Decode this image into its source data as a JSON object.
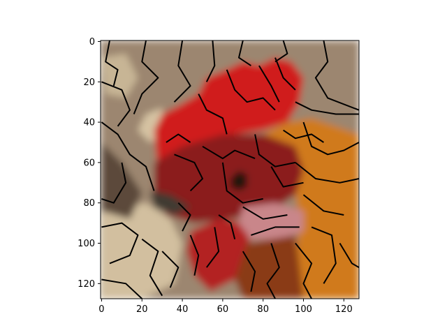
{
  "chart_data": {
    "type": "heatmap",
    "description": "",
    "title": "",
    "xlabel": "",
    "ylabel": "",
    "xlim": [
      -0.5,
      127.5
    ],
    "ylim": [
      127.5,
      -0.5
    ],
    "x_ticks": [
      0,
      20,
      40,
      60,
      80,
      100,
      120
    ],
    "y_ticks": [
      0,
      20,
      40,
      60,
      80,
      100,
      120
    ],
    "y_axis_inverted": true,
    "grid": false,
    "legend": "none",
    "image_regions": [
      {
        "name": "background",
        "color": "#9c8670",
        "poly": [
          [
            -0.5,
            -0.5
          ],
          [
            127.5,
            -0.5
          ],
          [
            127.5,
            127.5
          ],
          [
            -0.5,
            127.5
          ]
        ]
      },
      {
        "name": "pale-patches-left",
        "color": "#c7b595",
        "poly": [
          [
            0,
            8
          ],
          [
            12,
            6
          ],
          [
            18,
            18
          ],
          [
            12,
            28
          ],
          [
            2,
            26
          ]
        ]
      },
      {
        "name": "pale-patch-mid",
        "color": "#d6c3a3",
        "poly": [
          [
            22,
            36
          ],
          [
            30,
            33
          ],
          [
            32,
            46
          ],
          [
            24,
            50
          ],
          [
            18,
            44
          ]
        ]
      },
      {
        "name": "pale-lower-left",
        "color": "#d2bf9f",
        "poly": [
          [
            0,
            85
          ],
          [
            22,
            80
          ],
          [
            34,
            88
          ],
          [
            40,
            100
          ],
          [
            36,
            120
          ],
          [
            20,
            127.5
          ],
          [
            0,
            127.5
          ]
        ]
      },
      {
        "name": "dark-left-band",
        "color": "#5b4a3a",
        "poly": [
          [
            0,
            50
          ],
          [
            10,
            60
          ],
          [
            20,
            75
          ],
          [
            14,
            88
          ],
          [
            0,
            84
          ]
        ]
      },
      {
        "name": "comb",
        "color": "#d01f1f",
        "poly": [
          [
            26,
            44
          ],
          [
            30,
            36
          ],
          [
            38,
            32
          ],
          [
            48,
            26
          ],
          [
            52,
            18
          ],
          [
            62,
            14
          ],
          [
            70,
            10
          ],
          [
            78,
            12
          ],
          [
            86,
            8
          ],
          [
            94,
            10
          ],
          [
            100,
            18
          ],
          [
            98,
            30
          ],
          [
            92,
            40
          ],
          [
            80,
            44
          ],
          [
            66,
            46
          ],
          [
            50,
            50
          ],
          [
            34,
            56
          ],
          [
            28,
            66
          ]
        ]
      },
      {
        "name": "head",
        "color": "#8b1f1f",
        "poly": [
          [
            26,
            60
          ],
          [
            40,
            52
          ],
          [
            60,
            46
          ],
          [
            80,
            46
          ],
          [
            96,
            52
          ],
          [
            100,
            64
          ],
          [
            96,
            76
          ],
          [
            84,
            84
          ],
          [
            64,
            88
          ],
          [
            46,
            90
          ],
          [
            32,
            86
          ],
          [
            26,
            74
          ]
        ]
      },
      {
        "name": "hackle-orange",
        "color": "#d07a1e",
        "poly": [
          [
            80,
            46
          ],
          [
            92,
            40
          ],
          [
            104,
            38
          ],
          [
            116,
            42
          ],
          [
            127.5,
            46
          ],
          [
            127.5,
            127.5
          ],
          [
            100,
            127.5
          ],
          [
            96,
            110
          ],
          [
            98,
            90
          ],
          [
            96,
            76
          ],
          [
            100,
            64
          ],
          [
            96,
            52
          ]
        ]
      },
      {
        "name": "wattle",
        "color": "#b32020",
        "poly": [
          [
            44,
            94
          ],
          [
            58,
            88
          ],
          [
            72,
            90
          ],
          [
            74,
            104
          ],
          [
            66,
            118
          ],
          [
            54,
            124
          ],
          [
            46,
            116
          ],
          [
            42,
            104
          ]
        ]
      },
      {
        "name": "ear-lobe",
        "color": "#c9868a",
        "poly": [
          [
            70,
            82
          ],
          [
            86,
            80
          ],
          [
            100,
            84
          ],
          [
            100,
            94
          ],
          [
            88,
            98
          ],
          [
            74,
            98
          ],
          [
            68,
            90
          ]
        ]
      },
      {
        "name": "neck-brown",
        "color": "#8a3a14",
        "poly": [
          [
            72,
            100
          ],
          [
            96,
            96
          ],
          [
            100,
            127.5
          ],
          [
            70,
            127.5
          ],
          [
            66,
            118
          ]
        ]
      },
      {
        "name": "beak",
        "color": "#3f3a33",
        "poly": [
          [
            24,
            74
          ],
          [
            34,
            76
          ],
          [
            44,
            82
          ],
          [
            36,
            86
          ],
          [
            26,
            82
          ]
        ]
      },
      {
        "name": "eye",
        "color": "#1d120c",
        "poly": [
          [
            64,
            68
          ],
          [
            68,
            64
          ],
          [
            72,
            66
          ],
          [
            72,
            72
          ],
          [
            68,
            74
          ],
          [
            64,
            72
          ]
        ]
      }
    ],
    "boundaries": [
      [
        [
          4,
          -0.5
        ],
        [
          2,
          10
        ],
        [
          8,
          14
        ],
        [
          6,
          22
        ]
      ],
      [
        [
          22,
          -0.5
        ],
        [
          20,
          10
        ],
        [
          28,
          18
        ],
        [
          20,
          26
        ],
        [
          16,
          36
        ]
      ],
      [
        [
          40,
          -0.5
        ],
        [
          38,
          12
        ],
        [
          44,
          22
        ],
        [
          36,
          30
        ]
      ],
      [
        [
          55,
          -0.5
        ],
        [
          56,
          12
        ],
        [
          52,
          20
        ]
      ],
      [
        [
          70,
          -0.5
        ],
        [
          68,
          8
        ],
        [
          74,
          12
        ]
      ],
      [
        [
          90,
          -0.5
        ],
        [
          92,
          6
        ],
        [
          86,
          10
        ]
      ],
      [
        [
          110,
          -0.5
        ],
        [
          112,
          10
        ],
        [
          106,
          18
        ],
        [
          112,
          28
        ],
        [
          127.5,
          34
        ]
      ],
      [
        [
          0,
          20
        ],
        [
          10,
          24
        ],
        [
          14,
          34
        ],
        [
          8,
          42
        ]
      ],
      [
        [
          0,
          40
        ],
        [
          8,
          46
        ],
        [
          14,
          56
        ],
        [
          22,
          62
        ],
        [
          26,
          74
        ]
      ],
      [
        [
          10,
          60
        ],
        [
          12,
          70
        ],
        [
          6,
          80
        ],
        [
          0,
          78
        ]
      ],
      [
        [
          0,
          92
        ],
        [
          10,
          90
        ],
        [
          18,
          96
        ],
        [
          14,
          106
        ],
        [
          4,
          110
        ]
      ],
      [
        [
          20,
          98
        ],
        [
          28,
          104
        ],
        [
          24,
          116
        ],
        [
          30,
          126
        ]
      ],
      [
        [
          0,
          118
        ],
        [
          12,
          120
        ],
        [
          20,
          127.5
        ]
      ],
      [
        [
          30,
          104
        ],
        [
          38,
          112
        ],
        [
          34,
          122
        ]
      ],
      [
        [
          48,
          26
        ],
        [
          52,
          34
        ],
        [
          60,
          38
        ],
        [
          62,
          46
        ]
      ],
      [
        [
          62,
          14
        ],
        [
          66,
          24
        ],
        [
          72,
          30
        ],
        [
          80,
          28
        ],
        [
          86,
          34
        ]
      ],
      [
        [
          78,
          12
        ],
        [
          84,
          22
        ],
        [
          88,
          30
        ]
      ],
      [
        [
          86,
          8
        ],
        [
          90,
          18
        ],
        [
          96,
          24
        ]
      ],
      [
        [
          32,
          50
        ],
        [
          38,
          46
        ],
        [
          44,
          50
        ]
      ],
      [
        [
          36,
          56
        ],
        [
          46,
          60
        ],
        [
          50,
          68
        ],
        [
          44,
          74
        ]
      ],
      [
        [
          50,
          52
        ],
        [
          60,
          58
        ],
        [
          66,
          54
        ],
        [
          76,
          58
        ]
      ],
      [
        [
          76,
          46
        ],
        [
          78,
          56
        ],
        [
          86,
          62
        ],
        [
          96,
          60
        ]
      ],
      [
        [
          60,
          60
        ],
        [
          62,
          74
        ],
        [
          70,
          80
        ],
        [
          80,
          78
        ]
      ],
      [
        [
          84,
          62
        ],
        [
          90,
          72
        ],
        [
          100,
          70
        ]
      ],
      [
        [
          100,
          40
        ],
        [
          104,
          52
        ],
        [
          112,
          56
        ],
        [
          120,
          54
        ],
        [
          127.5,
          50
        ]
      ],
      [
        [
          96,
          60
        ],
        [
          106,
          68
        ],
        [
          118,
          70
        ],
        [
          127.5,
          68
        ]
      ],
      [
        [
          100,
          76
        ],
        [
          110,
          84
        ],
        [
          120,
          86
        ]
      ],
      [
        [
          104,
          92
        ],
        [
          114,
          96
        ],
        [
          116,
          110
        ],
        [
          110,
          120
        ]
      ],
      [
        [
          118,
          100
        ],
        [
          124,
          110
        ],
        [
          127.5,
          112
        ]
      ],
      [
        [
          96,
          100
        ],
        [
          104,
          110
        ],
        [
          100,
          120
        ],
        [
          104,
          127.5
        ]
      ],
      [
        [
          84,
          100
        ],
        [
          88,
          112
        ],
        [
          82,
          120
        ],
        [
          86,
          127.5
        ]
      ],
      [
        [
          70,
          104
        ],
        [
          76,
          114
        ],
        [
          74,
          124
        ]
      ],
      [
        [
          56,
          92
        ],
        [
          58,
          104
        ],
        [
          52,
          112
        ]
      ],
      [
        [
          44,
          96
        ],
        [
          48,
          106
        ],
        [
          46,
          116
        ]
      ],
      [
        [
          38,
          80
        ],
        [
          44,
          86
        ],
        [
          40,
          94
        ]
      ],
      [
        [
          70,
          82
        ],
        [
          80,
          88
        ],
        [
          92,
          86
        ]
      ],
      [
        [
          74,
          96
        ],
        [
          86,
          92
        ],
        [
          98,
          92
        ]
      ],
      [
        [
          58,
          86
        ],
        [
          64,
          90
        ],
        [
          66,
          98
        ]
      ],
      [
        [
          90,
          44
        ],
        [
          96,
          48
        ],
        [
          104,
          46
        ],
        [
          110,
          50
        ]
      ],
      [
        [
          96,
          30
        ],
        [
          104,
          34
        ],
        [
          116,
          36
        ],
        [
          127.5,
          36
        ]
      ]
    ]
  }
}
